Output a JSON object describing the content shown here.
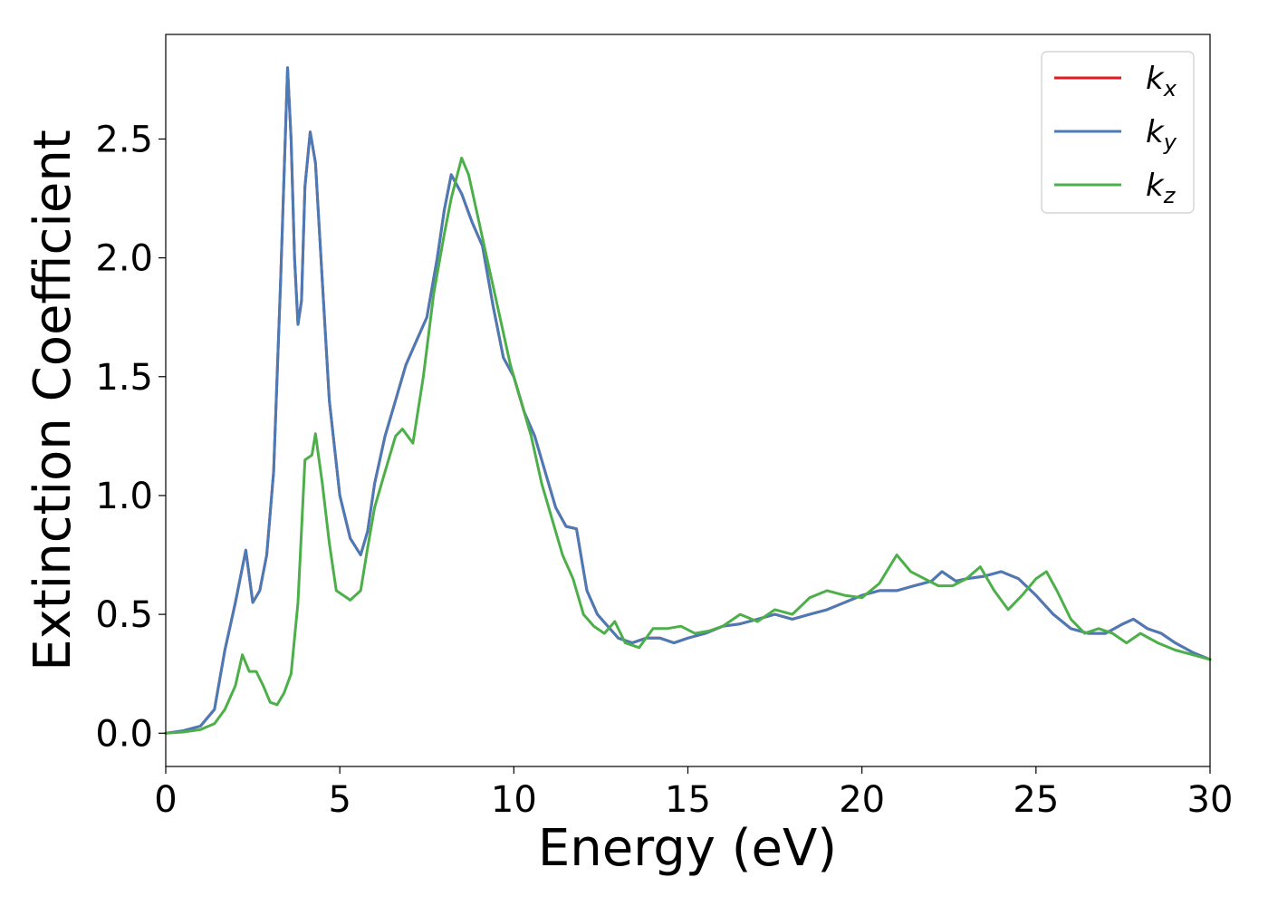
{
  "chart_data": {
    "type": "line",
    "title": "",
    "xlabel": "Energy (eV)",
    "ylabel": "Extinction Coefficient",
    "xlim": [
      0,
      30
    ],
    "ylim": [
      -0.14,
      2.94
    ],
    "xticks": [
      0,
      5,
      10,
      15,
      20,
      25,
      30
    ],
    "xtick_labels": [
      "0",
      "5",
      "10",
      "15",
      "20",
      "25",
      "30"
    ],
    "yticks": [
      0.0,
      0.5,
      1.0,
      1.5,
      2.0,
      2.5
    ],
    "ytick_labels": [
      "0.0",
      "0.5",
      "1.0",
      "1.5",
      "2.0",
      "2.5"
    ],
    "grid": false,
    "legend_position": "top-right",
    "series": [
      {
        "name": "k_x",
        "label_main": "k",
        "label_sub": "x",
        "color": "#e41a1c",
        "x": [
          0,
          0.5,
          1.0,
          1.4,
          1.7,
          2.0,
          2.3,
          2.5,
          2.7,
          2.9,
          3.1,
          3.3,
          3.5,
          3.6,
          3.7,
          3.8,
          3.9,
          4.0,
          4.15,
          4.3,
          4.5,
          4.7,
          5.0,
          5.3,
          5.6,
          5.8,
          6.0,
          6.3,
          6.6,
          6.9,
          7.2,
          7.5,
          7.8,
          8.0,
          8.2,
          8.5,
          8.8,
          9.1,
          9.4,
          9.7,
          10.0,
          10.3,
          10.6,
          10.9,
          11.2,
          11.5,
          11.8,
          12.1,
          12.4,
          12.7,
          13.0,
          13.4,
          13.8,
          14.2,
          14.6,
          15.0,
          15.5,
          16.0,
          16.5,
          17.0,
          17.5,
          18.0,
          18.5,
          19.0,
          19.5,
          20.0,
          20.5,
          21.0,
          21.5,
          22.0,
          22.3,
          22.7,
          23.0,
          23.5,
          24.0,
          24.5,
          25.0,
          25.5,
          26.0,
          26.5,
          27.0,
          27.5,
          27.8,
          28.2,
          28.6,
          29.0,
          29.5,
          30.0
        ],
        "values": [
          0,
          0.01,
          0.03,
          0.1,
          0.35,
          0.55,
          0.77,
          0.55,
          0.6,
          0.75,
          1.1,
          1.9,
          2.8,
          2.5,
          2.0,
          1.72,
          1.82,
          2.3,
          2.53,
          2.4,
          1.9,
          1.4,
          1.0,
          0.82,
          0.75,
          0.85,
          1.05,
          1.25,
          1.4,
          1.55,
          1.65,
          1.75,
          2.0,
          2.2,
          2.35,
          2.27,
          2.15,
          2.05,
          1.8,
          1.58,
          1.5,
          1.35,
          1.25,
          1.1,
          0.95,
          0.87,
          0.86,
          0.6,
          0.5,
          0.45,
          0.4,
          0.38,
          0.4,
          0.4,
          0.38,
          0.4,
          0.42,
          0.45,
          0.46,
          0.48,
          0.5,
          0.48,
          0.5,
          0.52,
          0.55,
          0.58,
          0.6,
          0.6,
          0.62,
          0.64,
          0.68,
          0.64,
          0.65,
          0.66,
          0.68,
          0.65,
          0.58,
          0.5,
          0.44,
          0.42,
          0.42,
          0.46,
          0.48,
          0.44,
          0.42,
          0.38,
          0.34,
          0.31
        ]
      },
      {
        "name": "k_y",
        "label_main": "k",
        "label_sub": "y",
        "color": "#4a7bb7",
        "x": [
          0,
          0.5,
          1.0,
          1.4,
          1.7,
          2.0,
          2.3,
          2.5,
          2.7,
          2.9,
          3.1,
          3.3,
          3.5,
          3.6,
          3.7,
          3.8,
          3.9,
          4.0,
          4.15,
          4.3,
          4.5,
          4.7,
          5.0,
          5.3,
          5.6,
          5.8,
          6.0,
          6.3,
          6.6,
          6.9,
          7.2,
          7.5,
          7.8,
          8.0,
          8.2,
          8.5,
          8.8,
          9.1,
          9.4,
          9.7,
          10.0,
          10.3,
          10.6,
          10.9,
          11.2,
          11.5,
          11.8,
          12.1,
          12.4,
          12.7,
          13.0,
          13.4,
          13.8,
          14.2,
          14.6,
          15.0,
          15.5,
          16.0,
          16.5,
          17.0,
          17.5,
          18.0,
          18.5,
          19.0,
          19.5,
          20.0,
          20.5,
          21.0,
          21.5,
          22.0,
          22.3,
          22.7,
          23.0,
          23.5,
          24.0,
          24.5,
          25.0,
          25.5,
          26.0,
          26.5,
          27.0,
          27.5,
          27.8,
          28.2,
          28.6,
          29.0,
          29.5,
          30.0
        ],
        "values": [
          0,
          0.01,
          0.03,
          0.1,
          0.35,
          0.55,
          0.77,
          0.55,
          0.6,
          0.75,
          1.1,
          1.9,
          2.8,
          2.5,
          2.0,
          1.72,
          1.82,
          2.3,
          2.53,
          2.4,
          1.9,
          1.4,
          1.0,
          0.82,
          0.75,
          0.85,
          1.05,
          1.25,
          1.4,
          1.55,
          1.65,
          1.75,
          2.0,
          2.2,
          2.35,
          2.27,
          2.15,
          2.05,
          1.8,
          1.58,
          1.5,
          1.35,
          1.25,
          1.1,
          0.95,
          0.87,
          0.86,
          0.6,
          0.5,
          0.45,
          0.4,
          0.38,
          0.4,
          0.4,
          0.38,
          0.4,
          0.42,
          0.45,
          0.46,
          0.48,
          0.5,
          0.48,
          0.5,
          0.52,
          0.55,
          0.58,
          0.6,
          0.6,
          0.62,
          0.64,
          0.68,
          0.64,
          0.65,
          0.66,
          0.68,
          0.65,
          0.58,
          0.5,
          0.44,
          0.42,
          0.42,
          0.46,
          0.48,
          0.44,
          0.42,
          0.38,
          0.34,
          0.31
        ]
      },
      {
        "name": "k_z",
        "label_main": "k",
        "label_sub": "z",
        "color": "#4daf4a",
        "x": [
          0,
          0.5,
          1.0,
          1.4,
          1.7,
          2.0,
          2.2,
          2.4,
          2.6,
          2.8,
          3.0,
          3.2,
          3.4,
          3.6,
          3.8,
          4.0,
          4.2,
          4.3,
          4.5,
          4.7,
          4.9,
          5.1,
          5.3,
          5.6,
          5.8,
          6.0,
          6.3,
          6.6,
          6.8,
          7.1,
          7.4,
          7.7,
          8.0,
          8.2,
          8.5,
          8.7,
          9.0,
          9.3,
          9.6,
          9.9,
          10.2,
          10.5,
          10.8,
          11.1,
          11.4,
          11.7,
          12.0,
          12.3,
          12.6,
          12.9,
          13.2,
          13.6,
          14.0,
          14.4,
          14.8,
          15.2,
          15.6,
          16.0,
          16.5,
          17.0,
          17.5,
          18.0,
          18.5,
          19.0,
          19.5,
          20.0,
          20.5,
          21.0,
          21.4,
          21.8,
          22.2,
          22.6,
          23.0,
          23.4,
          23.8,
          24.2,
          24.6,
          25.0,
          25.3,
          25.6,
          26.0,
          26.4,
          26.8,
          27.2,
          27.6,
          28.0,
          28.5,
          29.0,
          29.5,
          30.0
        ],
        "values": [
          0,
          0.005,
          0.015,
          0.04,
          0.1,
          0.2,
          0.33,
          0.26,
          0.26,
          0.2,
          0.13,
          0.12,
          0.17,
          0.25,
          0.55,
          1.15,
          1.17,
          1.26,
          1.05,
          0.8,
          0.6,
          0.58,
          0.56,
          0.6,
          0.78,
          0.95,
          1.1,
          1.25,
          1.28,
          1.22,
          1.5,
          1.85,
          2.1,
          2.25,
          2.42,
          2.35,
          2.15,
          1.95,
          1.75,
          1.55,
          1.4,
          1.25,
          1.05,
          0.9,
          0.75,
          0.65,
          0.5,
          0.45,
          0.42,
          0.47,
          0.38,
          0.36,
          0.44,
          0.44,
          0.45,
          0.42,
          0.43,
          0.45,
          0.5,
          0.47,
          0.52,
          0.5,
          0.57,
          0.6,
          0.58,
          0.57,
          0.63,
          0.75,
          0.68,
          0.65,
          0.62,
          0.62,
          0.65,
          0.7,
          0.6,
          0.52,
          0.58,
          0.65,
          0.68,
          0.6,
          0.48,
          0.42,
          0.44,
          0.42,
          0.38,
          0.42,
          0.38,
          0.35,
          0.33,
          0.31
        ]
      }
    ]
  }
}
